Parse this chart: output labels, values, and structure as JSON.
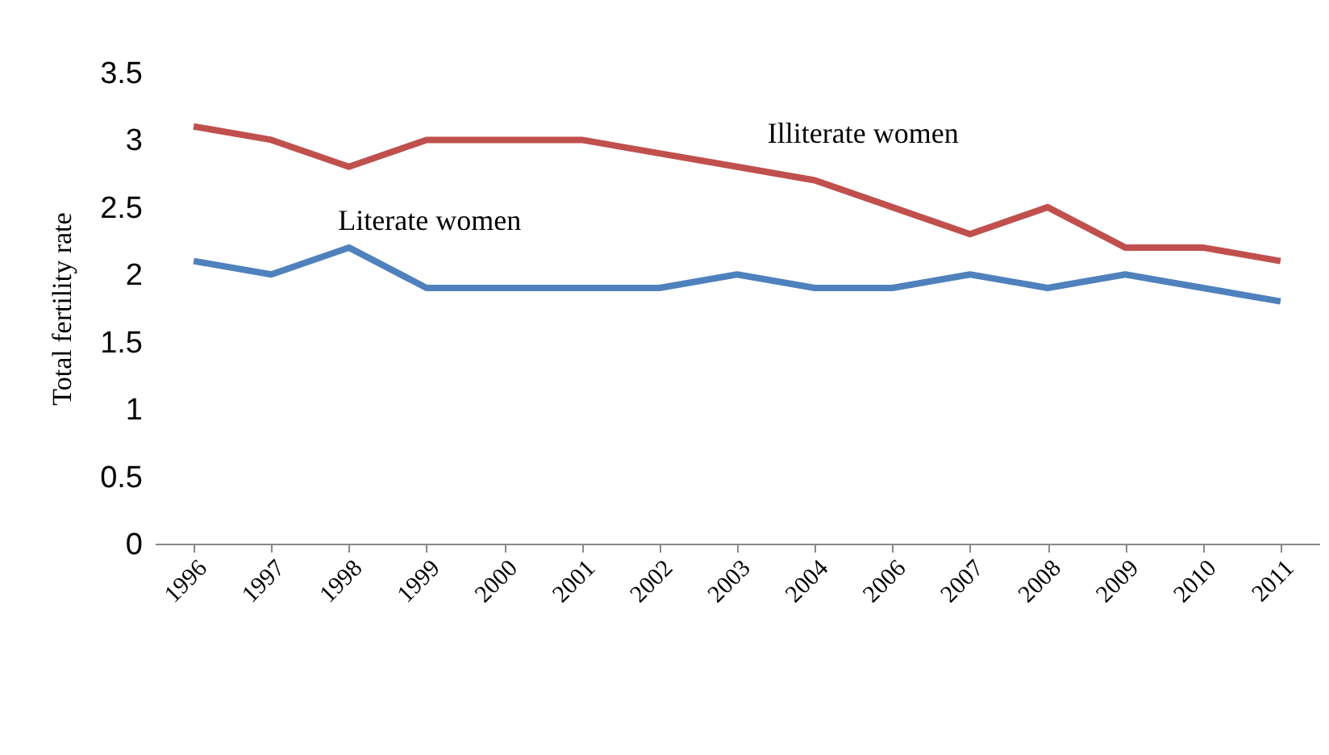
{
  "chart_data": {
    "type": "line",
    "ylabel": "Total fertility  rate",
    "categories": [
      "1996",
      "1997",
      "1998",
      "1999",
      "2000",
      "2001",
      "2002",
      "2003",
      "2004",
      "2006",
      "2007",
      "2008",
      "2009",
      "2010",
      "2011"
    ],
    "series": [
      {
        "name": "Illiterate  women",
        "color": "#c0504d",
        "values": [
          3.1,
          3.0,
          2.8,
          3.0,
          3.0,
          3.0,
          2.9,
          2.8,
          2.7,
          2.5,
          2.3,
          2.5,
          2.2,
          2.2,
          2.1
        ]
      },
      {
        "name": "Literate  women",
        "color": "#4f81bd",
        "values": [
          2.1,
          2.0,
          2.2,
          1.9,
          1.9,
          1.9,
          1.9,
          2.0,
          1.9,
          1.9,
          2.0,
          1.9,
          2.0,
          1.9,
          1.8
        ]
      }
    ],
    "ylim": [
      0,
      3.5
    ],
    "yticks": [
      0,
      0.5,
      1,
      1.5,
      2,
      2.5,
      3,
      3.5
    ],
    "grid": false,
    "marker": "none",
    "line_style": "solid"
  }
}
